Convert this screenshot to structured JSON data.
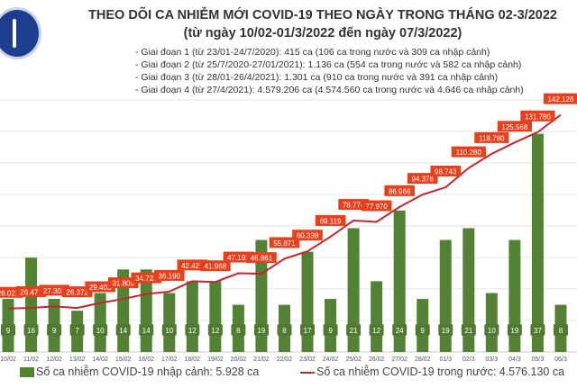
{
  "header": {
    "logo_text": "BỘ Y TẾ",
    "title": "THEO DÕI CA NHIỄM MỚI COVID-19 THEO NGÀY TRONG THÁNG 02-3/2022",
    "subtitle": "(từ ngày 10/02-01/3/2022 đến ngày 07/3/2022)",
    "phases": [
      "- Giai đoạn 1 (từ 23/01-24/7/2020): 415 ca (106 ca trong nước và 309 ca nhập cảnh)",
      "- Giai đoạn 2 (từ 25/7/2020-27/01/2021): 1.136 ca (554 ca trong nước và 582 ca nhập cảnh)",
      "- Giai đoạn 3 (từ 28/01-26/4/2021): 1.301 ca (910 ca trong nước và 391 ca nhập cảnh)",
      "- Giai đoạn 4 (từ 27/4/2021): 4.579.206 ca (4.574.560 ca trong nước và 4.646 ca nhập cảnh)"
    ]
  },
  "colors": {
    "bar": "#548235",
    "line": "#c0272d",
    "label": "#e8401c"
  },
  "chart_data": {
    "type": "bar+line",
    "title": "THEO DÕI CA NHIỄM MỚI COVID-19 THEO NGÀY TRONG THÁNG 02-3/2022",
    "categories": [
      "10/02",
      "11/02",
      "12/02",
      "13/02",
      "14/02",
      "15/02",
      "16/02",
      "17/02",
      "18/02",
      "19/02",
      "20/02",
      "21/02",
      "22/02",
      "23/02",
      "24/02",
      "25/02",
      "26/02",
      "27/02",
      "28/02",
      "01/3",
      "02/3",
      "03/3",
      "04/3",
      "05/3",
      "06/3"
    ],
    "series": [
      {
        "name": "Số ca nhiễm COVID-19 nhập cảnh: 5.928 ca",
        "type": "bar",
        "values": [
          9,
          16,
          9,
          7,
          10,
          14,
          14,
          10,
          12,
          12,
          8,
          19,
          8,
          17,
          9,
          21,
          12,
          24,
          9,
          19,
          21,
          10,
          19,
          37,
          8
        ],
        "labels": [
          "9",
          "16",
          "9",
          "7",
          "10",
          "14",
          "14",
          "10",
          "12",
          "12",
          "8",
          "19",
          "8",
          "17",
          "9",
          "21",
          "12",
          "24",
          "9",
          "19",
          "21",
          "10",
          "19",
          "37",
          "8"
        ]
      },
      {
        "name": "Số ca nhiễm COVID-19 trong nước: 4.576.130 ca",
        "type": "line",
        "values": [
          26023,
          26471,
          27302,
          26372,
          29403,
          31800,
          34723,
          36190,
          42427,
          41968,
          47192,
          46861,
          55871,
          60338,
          69119,
          78774,
          77970,
          86966,
          94376,
          98743,
          110280,
          118780,
          125568,
          131780,
          142128
        ],
        "labels": [
          "26.023",
          "26.471",
          "27.302",
          "26.372",
          "29.403",
          "31.800",
          "34.723",
          "36.190",
          "42.427",
          "41.968",
          "47.192",
          "46.861",
          "55.871",
          "60.338",
          "69.119",
          "78.774",
          "77.970",
          "86.966",
          "94.376",
          "98.743",
          "110.280",
          "118.780",
          "125.568",
          "131.780",
          "142.128"
        ]
      }
    ],
    "legend_position": "bottom",
    "grid": true
  }
}
